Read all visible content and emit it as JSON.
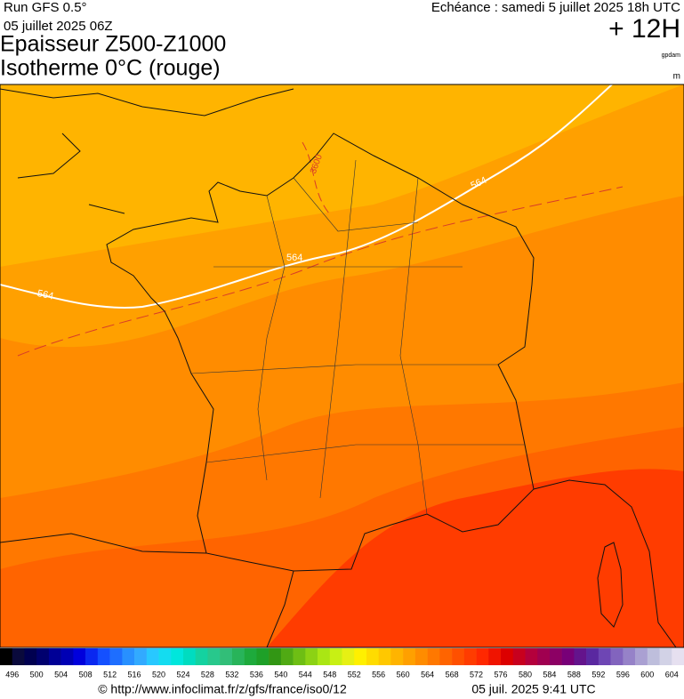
{
  "header": {
    "run": "Run GFS 0.5°",
    "run_date": "05 juillet 2025 06Z",
    "title_line1": "Epaisseur Z500-Z1000",
    "title_line2": "Isotherme 0°C (rouge)",
    "valid": "Echéance : samedi 5 juillet 2025 18h UTC",
    "lead": "+ 12H",
    "unit1": "gpdam",
    "unit2": "m"
  },
  "map": {
    "contour_labels": [
      "564",
      "564",
      "564",
      "3600"
    ]
  },
  "colorbar": {
    "labels": [
      496,
      500,
      504,
      508,
      512,
      516,
      520,
      524,
      528,
      532,
      536,
      540,
      544,
      548,
      552,
      556,
      560,
      564,
      568,
      572,
      576,
      580,
      584,
      588,
      592,
      596,
      600,
      604
    ],
    "colors": [
      "#000000",
      "#0a0a3c",
      "#000050",
      "#00006e",
      "#000096",
      "#0000b4",
      "#0000dc",
      "#0a28f0",
      "#1450ff",
      "#1e6eff",
      "#2890ff",
      "#32aaff",
      "#28c8ff",
      "#14dcf0",
      "#00e6dc",
      "#00dcc0",
      "#14d2a0",
      "#28c88c",
      "#32be78",
      "#28b45a",
      "#1eaa3c",
      "#1ea028",
      "#329614",
      "#50aa14",
      "#6ebe14",
      "#8cd214",
      "#aae614",
      "#c8f014",
      "#e6f014",
      "#fff000",
      "#ffdc00",
      "#ffc800",
      "#ffb400",
      "#ffa000",
      "#ff8c00",
      "#ff7800",
      "#ff6400",
      "#ff5000",
      "#ff3c00",
      "#ff2800",
      "#f01400",
      "#dc0000",
      "#c8001e",
      "#b4003c",
      "#a00050",
      "#8c0064",
      "#780078",
      "#64148c",
      "#5a28a0",
      "#6e46b4",
      "#8264be",
      "#9682c8",
      "#aaa0d2",
      "#bebedc",
      "#d2d2e6",
      "#e6e0f0"
    ]
  },
  "footer": {
    "url": "© http://www.infoclimat.fr/z/gfs/france/iso0/12",
    "timestamp": "05 juil. 2025  9:41 UTC"
  }
}
